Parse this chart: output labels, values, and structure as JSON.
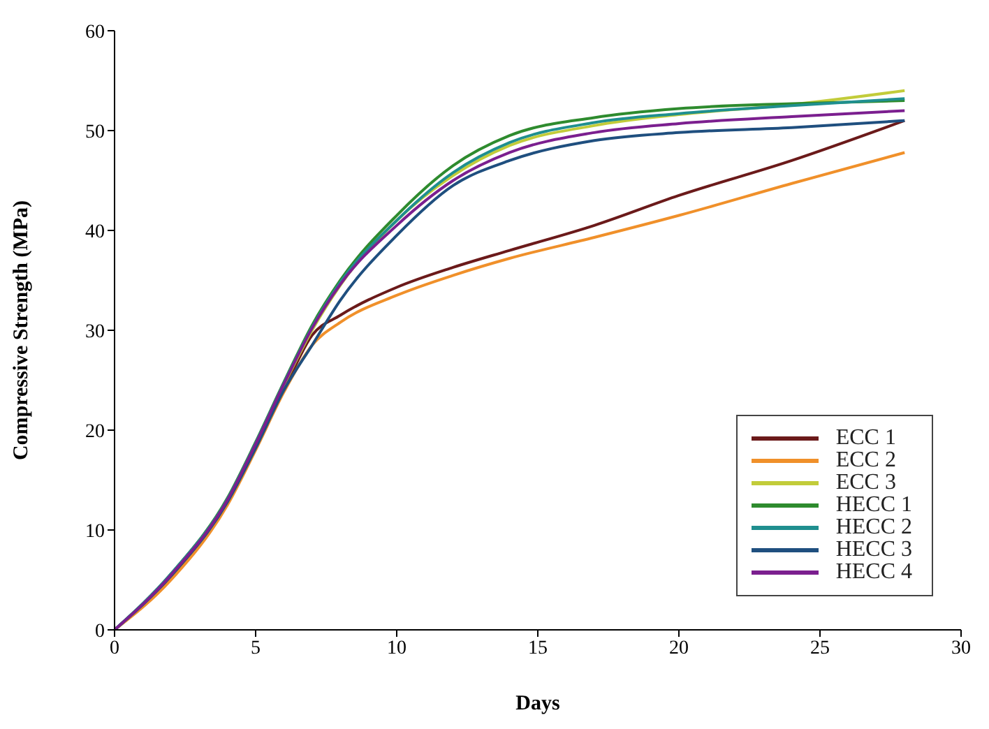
{
  "chart_data": {
    "type": "line",
    "xlabel": "Days",
    "ylabel": "Compressive Strength (MPa)",
    "xlim": [
      0,
      30
    ],
    "xticks": [
      0,
      5,
      10,
      15,
      20,
      25,
      30
    ],
    "ylim": [
      0,
      60
    ],
    "yticks": [
      0,
      10,
      20,
      30,
      40,
      50,
      60
    ],
    "x": [
      0,
      2,
      4,
      5,
      6,
      7,
      8,
      10,
      12,
      14,
      17,
      20,
      24,
      28
    ],
    "grid": false,
    "legend": "bottom right",
    "marker": "none",
    "line_style": "solid",
    "series": [
      {
        "name": "ECC 1",
        "color": "#6b1a1a",
        "values": [
          0,
          5.3,
          12.8,
          18.2,
          24,
          29.5,
          31.5,
          34.3,
          36.3,
          38,
          40.5,
          43.5,
          47,
          51
        ]
      },
      {
        "name": "ECC 2",
        "color": "#f0902a",
        "values": [
          0,
          5,
          12.5,
          18,
          23.8,
          28.5,
          30.8,
          33.5,
          35.5,
          37.2,
          39.3,
          41.5,
          44.7,
          47.8
        ]
      },
      {
        "name": "ECC 3",
        "color": "#c2cc3a",
        "values": [
          0,
          5.5,
          13,
          18.5,
          24.5,
          30,
          34.5,
          41,
          45.5,
          48.5,
          50.5,
          51.6,
          52.6,
          54
        ]
      },
      {
        "name": "HECC 1",
        "color": "#2e8b2e",
        "values": [
          0,
          5.6,
          13.2,
          18.8,
          24.8,
          30.5,
          35,
          41.5,
          46.5,
          49.5,
          51.3,
          52.2,
          52.7,
          53
        ]
      },
      {
        "name": "HECC 2",
        "color": "#1f8f8f",
        "values": [
          0,
          5.6,
          13.1,
          18.7,
          24.7,
          30.3,
          34.8,
          41,
          45.8,
          48.8,
          50.8,
          51.7,
          52.5,
          53.2
        ]
      },
      {
        "name": "HECC 3",
        "color": "#1f4f7f",
        "values": [
          0,
          5.4,
          12.8,
          18.2,
          24,
          28.5,
          33,
          39.5,
          44.5,
          47,
          49,
          49.8,
          50.3,
          51
        ]
      },
      {
        "name": "HECC 4",
        "color": "#7b1f8f",
        "values": [
          0,
          5.5,
          13,
          18.6,
          24.6,
          30.2,
          34.6,
          40.5,
          45,
          47.8,
          49.8,
          50.7,
          51.4,
          52
        ]
      }
    ]
  }
}
